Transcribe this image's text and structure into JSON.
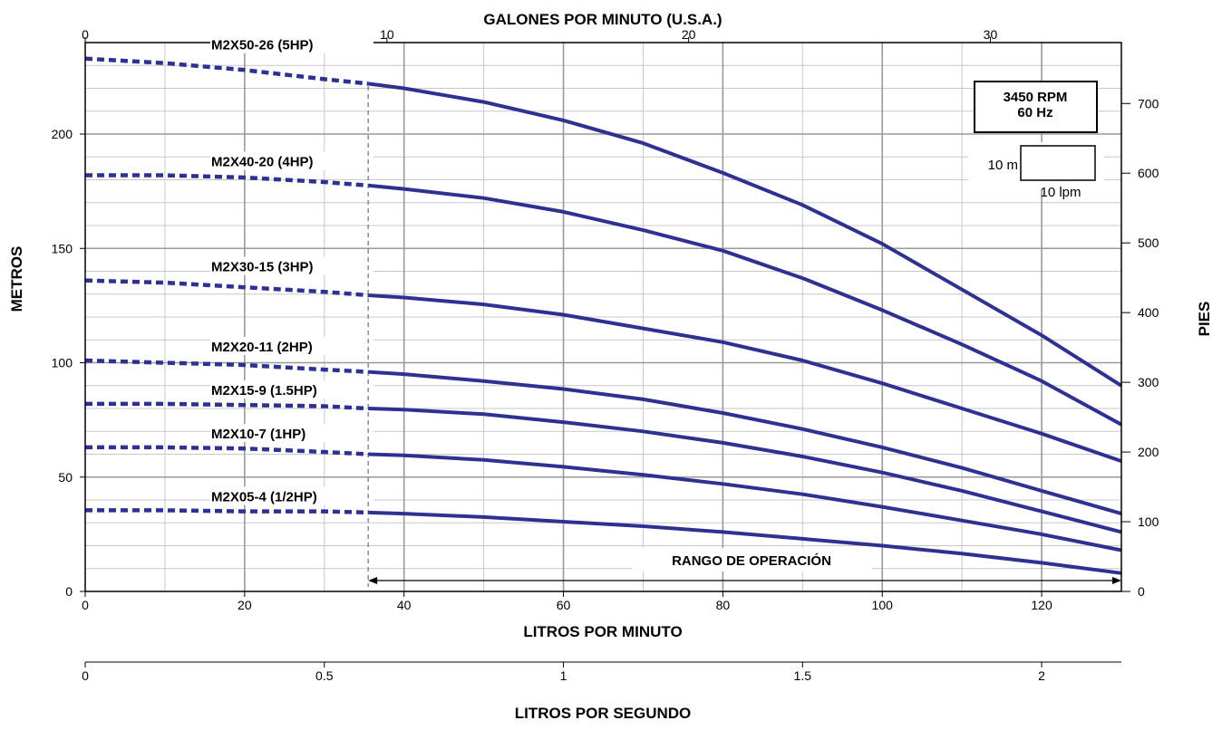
{
  "chart_data": {
    "type": "line",
    "title": "",
    "units_box": {
      "line1": "3450 RPM",
      "line2": "60 Hz"
    },
    "scale_key": {
      "vertical_label": "10 m",
      "horizontal_label": "10 lpm"
    },
    "x_bottom": {
      "label": "LITROS POR MINUTO",
      "range": [
        0,
        130
      ],
      "ticks": [
        0,
        20,
        40,
        60,
        80,
        100,
        120
      ]
    },
    "x_top": {
      "label": "GALONES POR MINUTO (U.S.A.)",
      "ticks": [
        0,
        10,
        20,
        30
      ]
    },
    "x_second": {
      "label": "LITROS POR SEGUNDO",
      "ticks": [
        "0",
        "0.5",
        "1",
        "1.5",
        "2"
      ]
    },
    "y_left": {
      "label": "METROS",
      "range": [
        0,
        240
      ],
      "ticks": [
        0,
        50,
        100,
        150,
        200
      ]
    },
    "y_right": {
      "label": "PIES",
      "ticks": [
        0,
        100,
        200,
        300,
        400,
        500,
        600,
        700
      ]
    },
    "operating_range": {
      "label": "RANGO DE OPERACIÓN",
      "x_start": 35.5,
      "x_end": 130
    },
    "dashed_until": 35.5,
    "series": [
      {
        "name": "M2X50-26 (5HP)",
        "x": [
          0,
          10,
          20,
          30,
          35.5,
          40,
          50,
          60,
          70,
          80,
          90,
          100,
          110,
          120,
          130
        ],
        "y": [
          233,
          231,
          228,
          224,
          222,
          220,
          214,
          206,
          196,
          183,
          169,
          152,
          132,
          112,
          90
        ]
      },
      {
        "name": "M2X40-20 (4HP)",
        "x": [
          0,
          10,
          20,
          30,
          35.5,
          40,
          50,
          60,
          70,
          80,
          90,
          100,
          110,
          120,
          130
        ],
        "y": [
          182,
          182,
          181,
          179,
          177.5,
          176,
          172,
          166,
          158,
          149,
          137,
          123,
          108,
          92,
          73
        ]
      },
      {
        "name": "M2X30-15 (3HP)",
        "x": [
          0,
          10,
          20,
          30,
          35.5,
          40,
          50,
          60,
          70,
          80,
          90,
          100,
          110,
          120,
          130
        ],
        "y": [
          136,
          135,
          133,
          131,
          129.5,
          128.5,
          125.5,
          121,
          115,
          109,
          101,
          91,
          80,
          69,
          57
        ]
      },
      {
        "name": "M2X20-11 (2HP)",
        "x": [
          0,
          10,
          20,
          30,
          35.5,
          40,
          50,
          60,
          70,
          80,
          90,
          100,
          110,
          120,
          130
        ],
        "y": [
          101,
          100,
          99,
          97,
          96,
          95,
          92,
          88.5,
          84,
          78,
          71,
          63,
          54,
          44,
          34
        ]
      },
      {
        "name": "M2X15-9 (1.5HP)",
        "x": [
          0,
          10,
          20,
          30,
          35.5,
          40,
          50,
          60,
          70,
          80,
          90,
          100,
          110,
          120,
          130
        ],
        "y": [
          82,
          82,
          81.5,
          81,
          80,
          79.5,
          77.5,
          74,
          70,
          65,
          59,
          52,
          44,
          35,
          26
        ]
      },
      {
        "name": "M2X10-7 (1HP)",
        "x": [
          0,
          10,
          20,
          30,
          35.5,
          40,
          50,
          60,
          70,
          80,
          90,
          100,
          110,
          120,
          130
        ],
        "y": [
          63,
          63,
          62.5,
          61,
          60,
          59.5,
          57.5,
          54.5,
          51,
          47,
          42.5,
          37,
          31,
          25,
          18
        ]
      },
      {
        "name": "M2X05-4  (1/2HP)",
        "x": [
          0,
          10,
          20,
          30,
          35.5,
          40,
          50,
          60,
          70,
          80,
          90,
          100,
          110,
          120,
          130
        ],
        "y": [
          35.5,
          35.5,
          35,
          35,
          34.5,
          34,
          32.5,
          30.5,
          28.5,
          26,
          23,
          20,
          16.5,
          12.5,
          8
        ]
      }
    ],
    "line_color": "#2e3192",
    "grid": true
  }
}
